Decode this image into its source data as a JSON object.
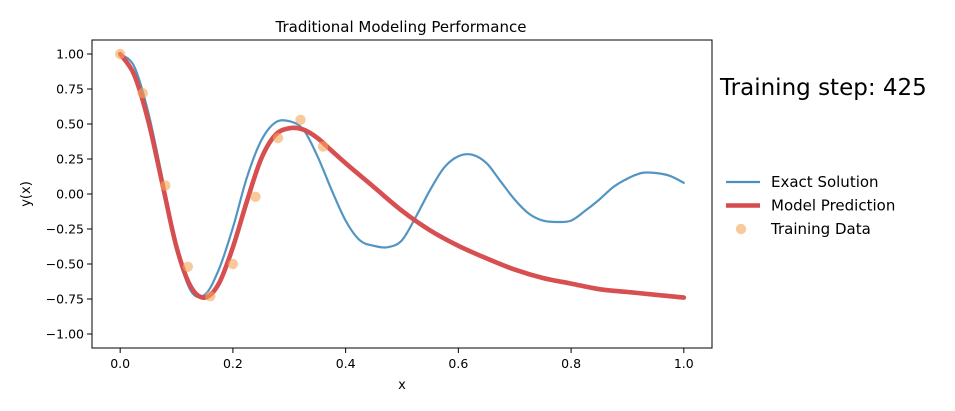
{
  "chart_data": {
    "type": "line",
    "title": "Traditional Modeling Performance",
    "xlabel": "x",
    "ylabel": "y(x)",
    "xlim": [
      -0.05,
      1.05
    ],
    "ylim": [
      -1.1,
      1.1
    ],
    "xticks": [
      0.0,
      0.2,
      0.4,
      0.6,
      0.8,
      1.0
    ],
    "xtick_labels": [
      "0.0",
      "0.2",
      "0.4",
      "0.6",
      "0.8",
      "1.0"
    ],
    "yticks": [
      1.0,
      0.75,
      0.5,
      0.25,
      0.0,
      -0.25,
      -0.5,
      -0.75,
      -1.0
    ],
    "ytick_labels": [
      "1.00",
      "0.75",
      "0.50",
      "0.25",
      "0.00",
      "−0.25",
      "−0.50",
      "−0.75",
      "−1.00"
    ],
    "grid": false,
    "legend_position": "right",
    "annotation": "Training step: 425",
    "series": [
      {
        "name": "Exact Solution",
        "kind": "line",
        "color": "#4a8fbf",
        "x": [
          0.0,
          0.025,
          0.05,
          0.075,
          0.1,
          0.125,
          0.15,
          0.175,
          0.2,
          0.225,
          0.25,
          0.275,
          0.3,
          0.325,
          0.35,
          0.375,
          0.4,
          0.425,
          0.45,
          0.475,
          0.5,
          0.525,
          0.55,
          0.575,
          0.6,
          0.625,
          0.65,
          0.675,
          0.7,
          0.725,
          0.75,
          0.775,
          0.8,
          0.825,
          0.85,
          0.875,
          0.9,
          0.925,
          0.95,
          0.975,
          1.0
        ],
        "y": [
          1.0,
          0.91,
          0.58,
          0.11,
          -0.38,
          -0.69,
          -0.72,
          -0.54,
          -0.24,
          0.12,
          0.38,
          0.51,
          0.52,
          0.46,
          0.27,
          0.03,
          -0.19,
          -0.33,
          -0.37,
          -0.38,
          -0.33,
          -0.16,
          0.03,
          0.19,
          0.27,
          0.28,
          0.22,
          0.09,
          -0.04,
          -0.14,
          -0.19,
          -0.2,
          -0.19,
          -0.12,
          -0.04,
          0.05,
          0.11,
          0.15,
          0.15,
          0.13,
          0.08
        ]
      },
      {
        "name": "Model Prediction",
        "kind": "line",
        "color": "#d64b4d",
        "x": [
          0.0,
          0.025,
          0.05,
          0.075,
          0.1,
          0.125,
          0.15,
          0.175,
          0.2,
          0.225,
          0.25,
          0.275,
          0.3,
          0.325,
          0.35,
          0.375,
          0.4,
          0.45,
          0.5,
          0.55,
          0.6,
          0.65,
          0.7,
          0.75,
          0.8,
          0.85,
          0.9,
          0.95,
          1.0
        ],
        "y": [
          1.0,
          0.85,
          0.52,
          0.07,
          -0.38,
          -0.66,
          -0.74,
          -0.64,
          -0.38,
          -0.05,
          0.25,
          0.42,
          0.47,
          0.46,
          0.4,
          0.31,
          0.22,
          0.05,
          -0.12,
          -0.26,
          -0.37,
          -0.46,
          -0.54,
          -0.6,
          -0.64,
          -0.68,
          -0.7,
          -0.72,
          -0.74
        ]
      },
      {
        "name": "Training Data",
        "kind": "scatter",
        "color": "#f5a55a",
        "x": [
          0.0,
          0.04,
          0.08,
          0.12,
          0.16,
          0.2,
          0.24,
          0.28,
          0.32,
          0.36
        ],
        "y": [
          1.0,
          0.72,
          0.06,
          -0.52,
          -0.73,
          -0.5,
          -0.02,
          0.4,
          0.53,
          0.34
        ]
      }
    ]
  }
}
